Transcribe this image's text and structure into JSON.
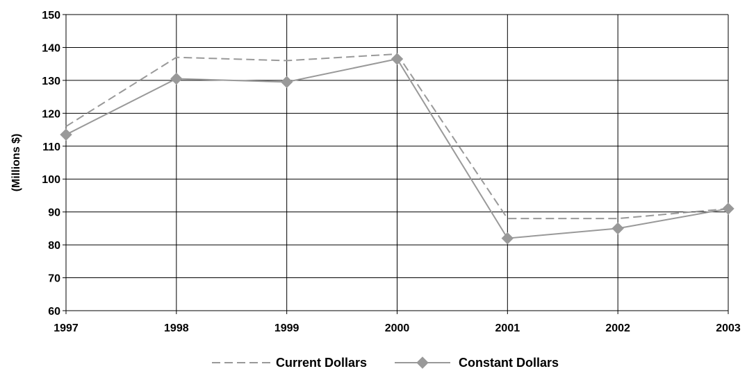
{
  "chart_data": {
    "type": "line",
    "title": "",
    "xlabel": "",
    "ylabel": "(Millions $)",
    "x": [
      "1997",
      "1998",
      "1999",
      "2000",
      "2001",
      "2002",
      "2003"
    ],
    "ylim": [
      60,
      150
    ],
    "yticks": [
      "60",
      "70",
      "80",
      "90",
      "100",
      "110",
      "120",
      "130",
      "140",
      "150"
    ],
    "grid": "horizontal",
    "legend_position": "bottom",
    "series": [
      {
        "name": "Current Dollars",
        "values": [
          116,
          137,
          136,
          138,
          88,
          88,
          91
        ],
        "color": "#999999",
        "style": "dashed",
        "marker": "none"
      },
      {
        "name": "Constant Dollars",
        "values": [
          113.5,
          130.5,
          129.5,
          136.5,
          82,
          85,
          91
        ],
        "color": "#999999",
        "style": "solid",
        "marker": "diamond"
      }
    ]
  }
}
